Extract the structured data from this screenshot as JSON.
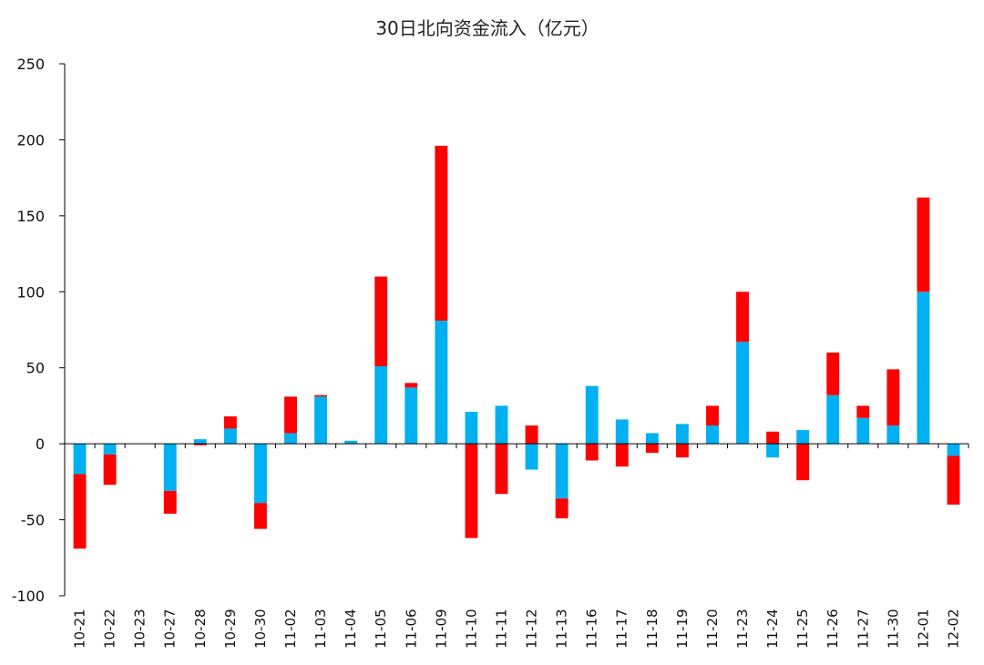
{
  "chart_data": {
    "type": "bar",
    "stacked": true,
    "title": "30日北向资金流入（亿元）",
    "xlabel": "",
    "ylabel": "",
    "ylim": [
      -100,
      250
    ],
    "yticks": [
      250,
      200,
      150,
      100,
      50,
      0,
      -50,
      -100
    ],
    "grid": false,
    "legend": "none",
    "categories": [
      "10-21",
      "10-22",
      "10-23",
      "10-27",
      "10-28",
      "10-29",
      "10-30",
      "11-02",
      "11-03",
      "11-04",
      "11-05",
      "11-06",
      "11-09",
      "11-10",
      "11-11",
      "11-12",
      "11-13",
      "11-16",
      "11-17",
      "11-18",
      "11-19",
      "11-20",
      "11-23",
      "11-24",
      "11-25",
      "11-26",
      "11-27",
      "11-30",
      "12-01",
      "12-02"
    ],
    "series": [
      {
        "color": "#00B0F0",
        "values": [
          -20,
          -7,
          0,
          -31,
          3,
          10,
          -39,
          7,
          31,
          2,
          51,
          37,
          81,
          21,
          25,
          -17,
          -36,
          38,
          16,
          7,
          13,
          12,
          67,
          -9,
          9,
          32,
          17,
          12,
          100,
          -8
        ]
      },
      {
        "color": "#FF0000",
        "values": [
          -49,
          -20,
          0,
          -15,
          -1,
          8,
          -17,
          24,
          1,
          0,
          59,
          3,
          115,
          -62,
          -33,
          12,
          -13,
          -11,
          -15,
          -6,
          -9,
          13,
          33,
          8,
          -24,
          28,
          8,
          37,
          62,
          -32
        ]
      }
    ]
  }
}
